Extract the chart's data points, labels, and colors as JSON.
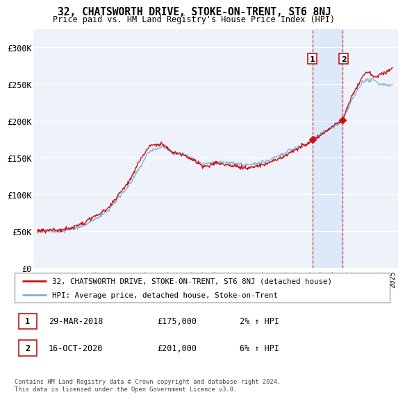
{
  "title": "32, CHATSWORTH DRIVE, STOKE-ON-TRENT, ST6 8NJ",
  "subtitle": "Price paid vs. HM Land Registry's House Price Index (HPI)",
  "ylim": [
    0,
    325000
  ],
  "yticks": [
    0,
    50000,
    100000,
    150000,
    200000,
    250000,
    300000
  ],
  "ytick_labels": [
    "£0",
    "£50K",
    "£100K",
    "£150K",
    "£200K",
    "£250K",
    "£300K"
  ],
  "background_color": "#ffffff",
  "plot_bg_color": "#eef2fb",
  "grid_color": "#ffffff",
  "hpi_color": "#7fb3d3",
  "price_color": "#cc1111",
  "highlight_color": "#dde8f8",
  "legend_label_price": "32, CHATSWORTH DRIVE, STOKE-ON-TRENT, ST6 8NJ (detached house)",
  "legend_label_hpi": "HPI: Average price, detached house, Stoke-on-Trent",
  "transaction1_date": "29-MAR-2018",
  "transaction1_price": "£175,000",
  "transaction1_hpi": "2% ↑ HPI",
  "transaction2_date": "16-OCT-2020",
  "transaction2_price": "£201,000",
  "transaction2_hpi": "6% ↑ HPI",
  "copyright_text": "Contains HM Land Registry data © Crown copyright and database right 2024.\nThis data is licensed under the Open Government Licence v3.0.",
  "x_start_year": 1995,
  "x_end_year": 2025,
  "sale1_year": 2018.24,
  "sale1_price": 175000,
  "sale2_year": 2020.79,
  "sale2_price": 201000
}
